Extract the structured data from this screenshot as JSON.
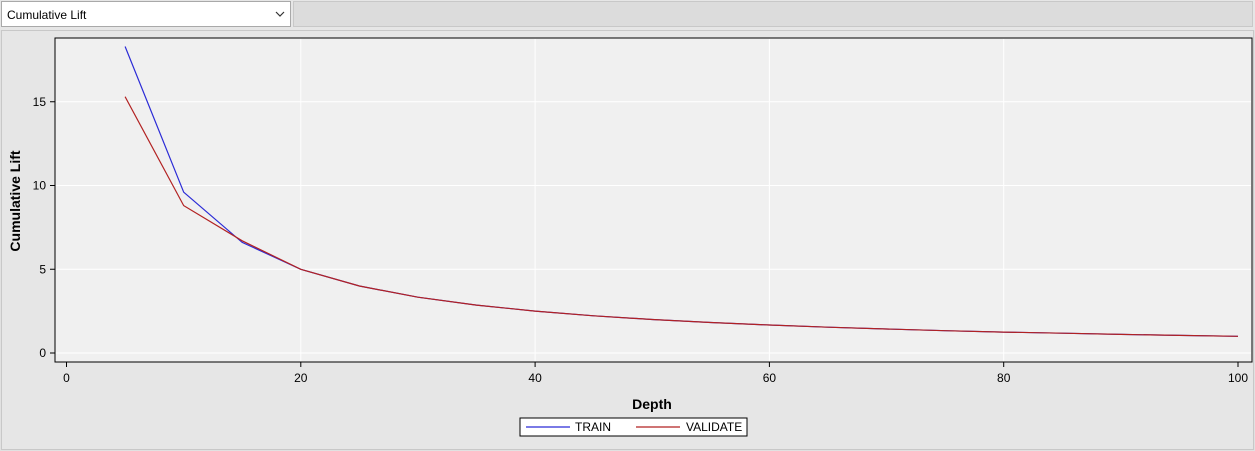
{
  "selector": {
    "value": "Cumulative Lift",
    "icon": "chevron-down-icon"
  },
  "chart_data": {
    "type": "line",
    "xlabel": "Depth",
    "ylabel": "Cumulative Lift",
    "xlim": [
      0,
      100
    ],
    "ylim": [
      0,
      18.5
    ],
    "xticks": [
      0,
      20,
      40,
      60,
      80,
      100
    ],
    "yticks": [
      0,
      5,
      10,
      15
    ],
    "grid": true,
    "legend_position": "bottom-center",
    "series": [
      {
        "name": "TRAIN",
        "color": "#2b2bd6",
        "x": [
          5,
          10,
          15,
          20,
          25,
          30,
          35,
          40,
          45,
          50,
          55,
          60,
          65,
          70,
          75,
          80,
          85,
          90,
          95,
          100
        ],
        "y": [
          18.3,
          9.6,
          6.6,
          5.0,
          4.0,
          3.33,
          2.86,
          2.5,
          2.22,
          2.0,
          1.82,
          1.67,
          1.54,
          1.43,
          1.33,
          1.25,
          1.18,
          1.11,
          1.05,
          1.0
        ]
      },
      {
        "name": "VALIDATE",
        "color": "#b22222",
        "x": [
          5,
          10,
          15,
          20,
          25,
          30,
          35,
          40,
          45,
          50,
          55,
          60,
          65,
          70,
          75,
          80,
          85,
          90,
          95,
          100
        ],
        "y": [
          15.3,
          8.8,
          6.7,
          5.0,
          4.0,
          3.33,
          2.86,
          2.5,
          2.22,
          2.0,
          1.82,
          1.67,
          1.54,
          1.43,
          1.33,
          1.25,
          1.18,
          1.11,
          1.05,
          1.0
        ]
      }
    ]
  }
}
